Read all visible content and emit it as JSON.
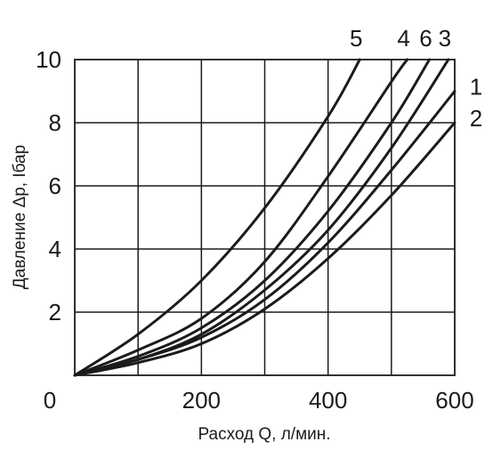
{
  "chart_data": {
    "type": "line",
    "title": "",
    "xlabel": "Расход Q, л/мин.",
    "ylabel": "Давление Δp, Ібар",
    "xlim": [
      0,
      600
    ],
    "ylim": [
      0,
      10
    ],
    "x_ticks": [
      0,
      200,
      400,
      600
    ],
    "x_tick_labels": [
      "0",
      "200",
      "400",
      "600"
    ],
    "y_ticks": [
      2,
      4,
      6,
      8,
      10
    ],
    "y_tick_labels": [
      "2",
      "4",
      "6",
      "8",
      "10"
    ],
    "grid": true,
    "series": [
      {
        "name": "5",
        "x": [
          0,
          100,
          200,
          300,
          400,
          450
        ],
        "y": [
          0,
          1.3,
          3.0,
          5.3,
          8.2,
          10
        ]
      },
      {
        "name": "4",
        "x": [
          0,
          100,
          200,
          300,
          400,
          500,
          525
        ],
        "y": [
          0,
          0.8,
          1.8,
          3.6,
          6.3,
          9.3,
          10
        ]
      },
      {
        "name": "6",
        "x": [
          0,
          100,
          200,
          300,
          400,
          500,
          560
        ],
        "y": [
          0,
          0.6,
          1.5,
          3.0,
          5.2,
          8.0,
          10
        ]
      },
      {
        "name": "3",
        "x": [
          0,
          100,
          200,
          300,
          400,
          500,
          590
        ],
        "y": [
          0,
          0.5,
          1.3,
          2.7,
          4.6,
          7.2,
          10
        ]
      },
      {
        "name": "1",
        "x": [
          0,
          100,
          200,
          300,
          400,
          500,
          600
        ],
        "y": [
          0,
          0.5,
          1.2,
          2.4,
          4.2,
          6.5,
          9.0
        ]
      },
      {
        "name": "2",
        "x": [
          0,
          100,
          200,
          300,
          400,
          500,
          600
        ],
        "y": [
          0,
          0.4,
          1.0,
          2.1,
          3.7,
          5.7,
          8.0
        ]
      }
    ]
  }
}
